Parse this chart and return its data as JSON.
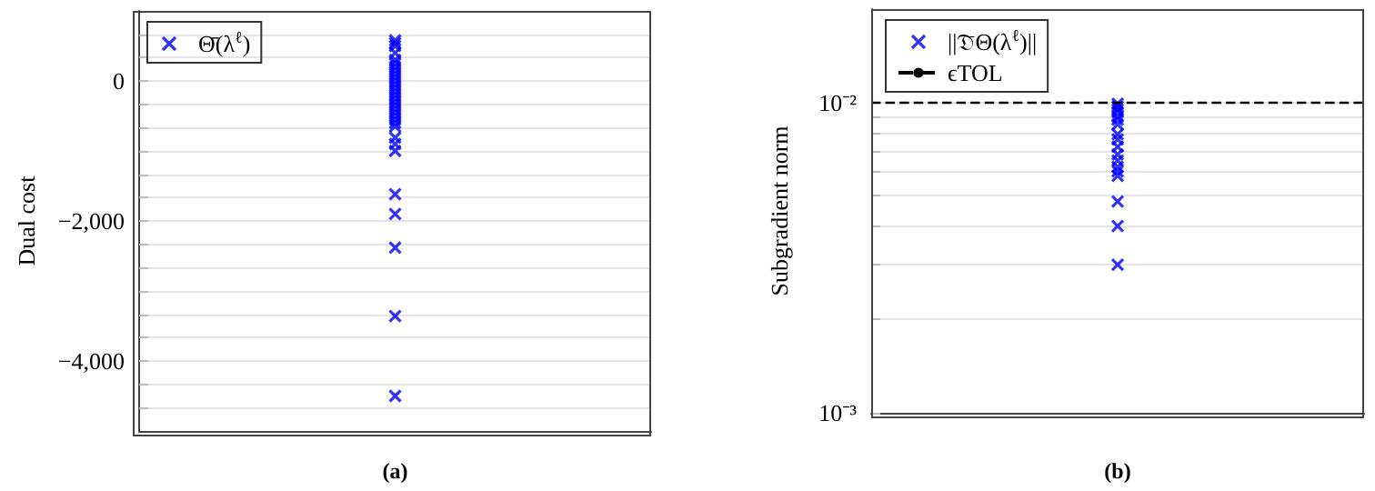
{
  "chart_data": [
    {
      "type": "scatter",
      "xlabel": "(a)",
      "ylabel": "Dual cost",
      "categories": [
        null
      ],
      "legend": "top left",
      "grid": "y",
      "tick_labels": "y",
      "marker": "cross",
      "ylim": [
        -5000,
        1000
      ],
      "yticks": [
        {
          "value": 666.7,
          "label": null
        },
        {
          "value": 333.3,
          "label": null
        },
        0,
        {
          "value": -333.3,
          "label": null
        },
        {
          "value": -666.7,
          "label": null
        },
        {
          "value": -1000,
          "label": null
        },
        {
          "value": -1333.3,
          "label": null
        },
        {
          "value": -1666.7,
          "label": null
        },
        {
          "value": -2000,
          "label": "−2,000"
        },
        {
          "value": -2333.3,
          "label": null
        },
        {
          "value": -2666.7,
          "label": null
        },
        {
          "value": -3000,
          "label": null
        },
        {
          "value": -3333.3,
          "label": null
        },
        {
          "value": -3666.7,
          "label": null
        },
        {
          "value": -4000,
          "label": "−4,000"
        },
        {
          "value": -4333.3,
          "label": null
        },
        {
          "value": -4666.7,
          "label": null
        }
      ],
      "series": [
        {
          "name": "Θ̄(λ$^{ℓ}$)",
          "color": "#0000ff",
          "x": [
            null,
            null,
            null,
            null,
            null,
            null,
            null,
            null,
            null,
            null,
            null,
            null,
            null,
            null,
            null,
            null,
            null,
            null,
            null,
            null,
            null,
            null,
            null,
            null,
            null,
            null,
            null,
            null,
            null,
            null,
            null,
            null
          ],
          "values": [
            580,
            540,
            500,
            300,
            250,
            200,
            150,
            100,
            50,
            0,
            -50,
            -100,
            -150,
            -200,
            -250,
            -300,
            -350,
            -400,
            -450,
            -500,
            -550,
            -600,
            -650,
            -810,
            -900,
            -1000,
            -1620,
            -1900,
            -2380,
            -3360,
            -4500,
            400
          ]
        }
      ]
    },
    {
      "type": "scatter",
      "xlabel": "(b)",
      "ylabel": "Subgradient norm",
      "categories": [
        null
      ],
      "legend": "top left",
      "grid": "y",
      "tick_labels": "y",
      "marker": "cross",
      "log": "y",
      "ylim": [
        0.001,
        0.02
      ],
      "yticks": [
        {
          "value": 0.001,
          "label": "10⁻³"
        },
        {
          "value": 0.002,
          "label": null
        },
        {
          "value": 0.003,
          "label": null
        },
        {
          "value": 0.004,
          "label": null
        },
        {
          "value": 0.005,
          "label": null
        },
        {
          "value": 0.006,
          "label": null
        },
        {
          "value": 0.007,
          "label": null
        },
        {
          "value": 0.008,
          "label": null
        },
        {
          "value": 0.009,
          "label": null
        },
        {
          "value": 0.01,
          "label": "10⁻²"
        },
        {
          "value": 0.02,
          "label": null
        }
      ],
      "ref_lines": [
        {
          "axis": "y",
          "value": 0.01,
          "label": "ϵTOL",
          "color": "#000000",
          "line_style": "dashed"
        }
      ],
      "series": [
        {
          "name": "||𝔇̄Θ(λ$^{ℓ}$)||",
          "color": "#0000ff",
          "x": [
            null,
            null,
            null,
            null,
            null,
            null,
            null,
            null,
            null,
            null,
            null,
            null,
            null,
            null,
            null,
            null,
            null,
            null
          ],
          "values": [
            0.0099,
            0.0097,
            0.0095,
            0.0093,
            0.009,
            0.0088,
            0.0085,
            0.0079,
            0.0076,
            0.0072,
            0.0068,
            0.0065,
            0.0062,
            0.006,
            0.0058,
            0.0048,
            0.004,
            0.003
          ]
        }
      ]
    }
  ]
}
